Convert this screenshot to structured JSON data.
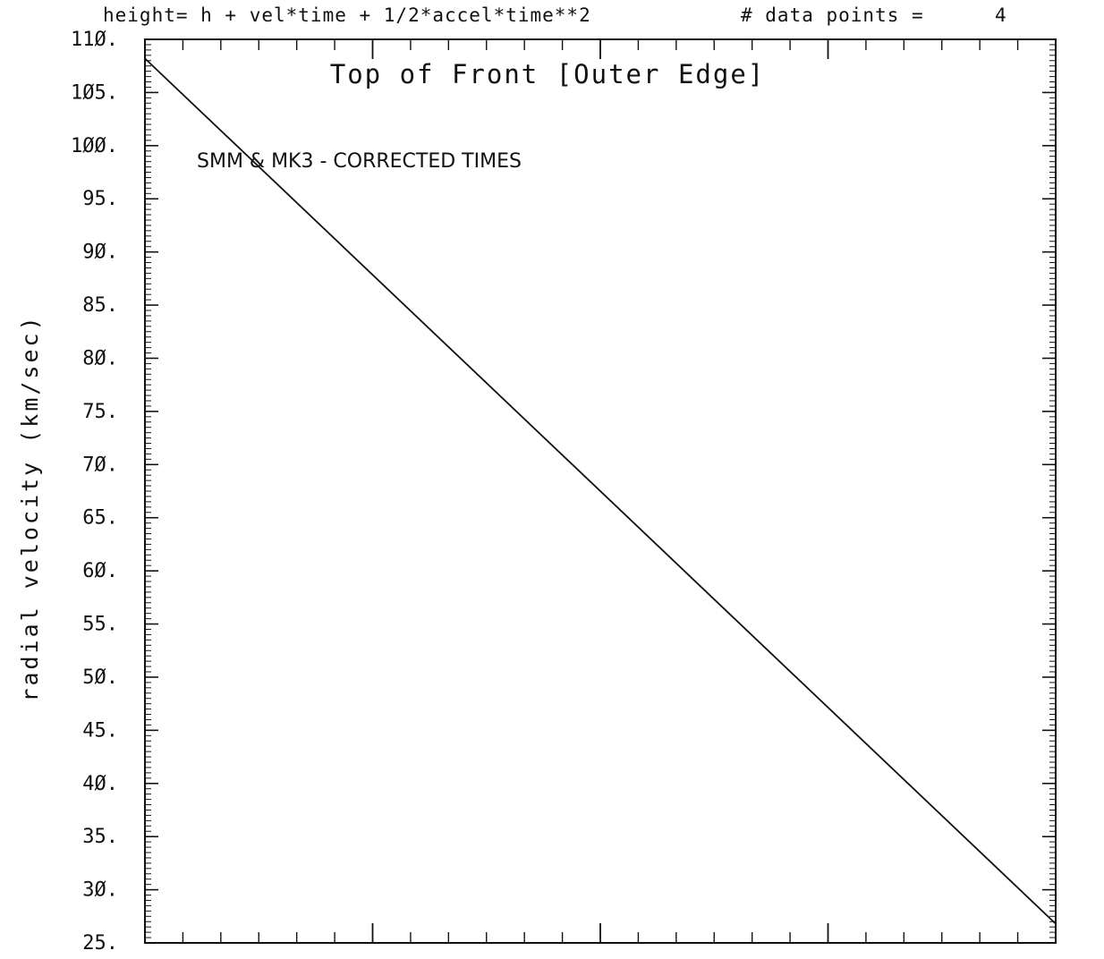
{
  "header": {
    "formula": "height= h + vel*time + 1/2*accel*time**2",
    "data_points_label": "# data points =",
    "data_points_value": "4"
  },
  "chart_data": {
    "type": "line",
    "title": "Top of Front [Outer Edge]",
    "annotation": "SMM & MK3 - CORRECTED TIMES",
    "xlabel": "",
    "ylabel": "radial velocity (km/sec)",
    "ylim": [
      25,
      110
    ],
    "y_ticks": [
      25,
      30,
      35,
      40,
      45,
      50,
      55,
      60,
      65,
      70,
      75,
      80,
      85,
      90,
      95,
      100,
      105,
      110
    ],
    "y_tick_labels": [
      "25.",
      "3Ø.",
      "35.",
      "4Ø.",
      "45.",
      "5Ø.",
      "55.",
      "6Ø.",
      "65.",
      "7Ø.",
      "75.",
      "8Ø.",
      "85.",
      "9Ø.",
      "95.",
      "1ØØ.",
      "1Ø5.",
      "11Ø."
    ],
    "y_minor_step": 0.5,
    "xlim": [
      0,
      12
    ],
    "x_major_ticks": [
      3,
      6,
      9
    ],
    "x_minor_step": 0.5,
    "x_tick_labels_shown": false,
    "grid": false,
    "series": [
      {
        "x": [
          0,
          12
        ],
        "values": [
          108.2,
          26.8
        ]
      }
    ],
    "line_color": "#111111"
  }
}
